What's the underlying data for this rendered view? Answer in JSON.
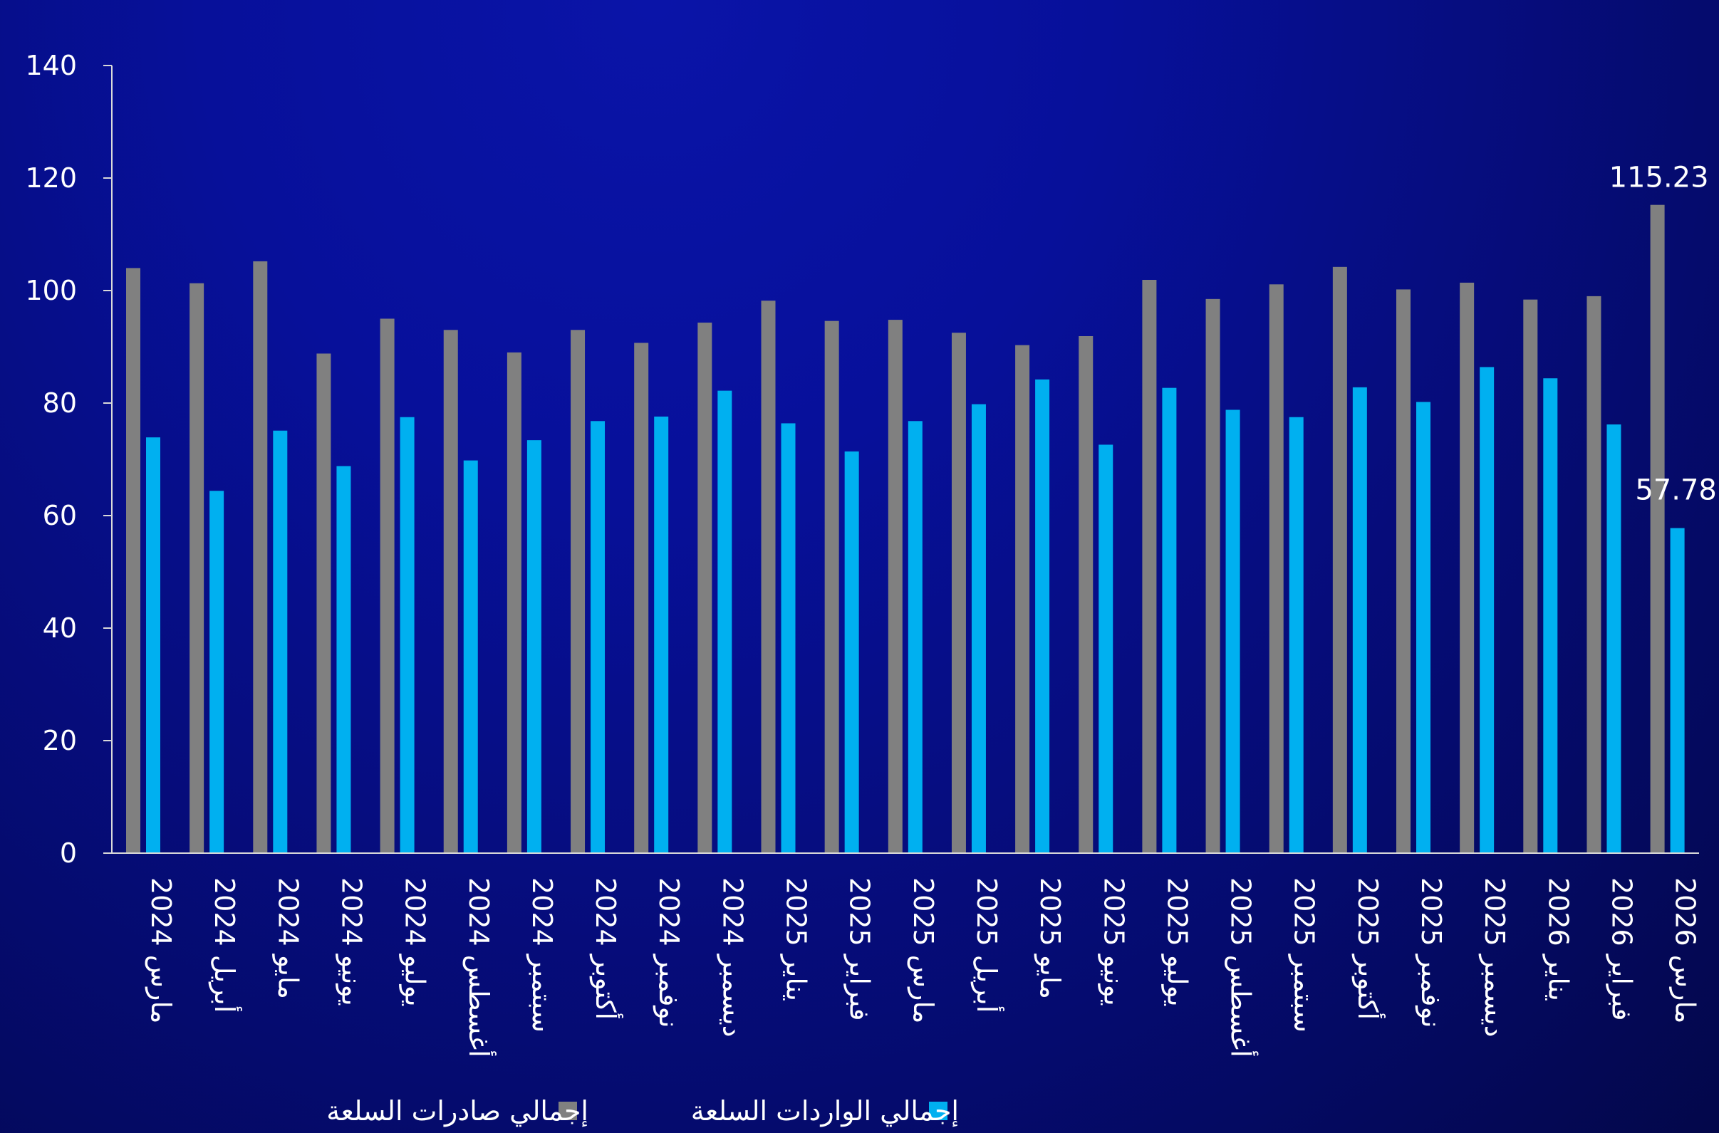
{
  "chart_data": {
    "type": "bar",
    "categories": [
      "مارس 2024",
      "أبريل 2024",
      "مايو 2024",
      "يونيو 2024",
      "يوليو 2024",
      "أغسطس 2024",
      "سبتمبر 2024",
      "أكتوبر 2024",
      "نوفمبر 2024",
      "ديسمبر 2024",
      "يناير 2025",
      "فبراير 2025",
      "مارس 2025",
      "أبريل 2025",
      "مايو 2025",
      "يونيو 2025",
      "يوليو 2025",
      "أغسطس 2025",
      "سبتمبر 2025",
      "أكتوبر 2025",
      "نوفمبر 2025",
      "ديسمبر 2025",
      "يناير 2026",
      "فبراير 2026",
      "مارس 2026"
    ],
    "series": [
      {
        "name": "إجمالي صادرات السلعة",
        "color": "#808080",
        "values": [
          104.0,
          101.3,
          105.2,
          88.8,
          95.0,
          93.0,
          89.0,
          93.0,
          90.7,
          94.3,
          98.2,
          94.6,
          94.8,
          92.5,
          90.3,
          91.9,
          101.9,
          98.5,
          101.1,
          104.2,
          100.2,
          101.4,
          98.4,
          99.0,
          115.23
        ]
      },
      {
        "name": "إجمالي الواردات السلعة",
        "color": "#00b0f0",
        "values": [
          73.9,
          64.4,
          75.1,
          68.8,
          77.5,
          69.8,
          73.4,
          76.8,
          77.6,
          82.2,
          76.4,
          71.4,
          76.8,
          79.8,
          84.2,
          72.6,
          82.7,
          78.8,
          77.5,
          82.8,
          80.2,
          86.4,
          84.4,
          76.2,
          57.78
        ]
      }
    ],
    "data_labels": [
      "115.23",
      "57.78"
    ],
    "ylim": [
      0,
      140
    ],
    "yticks": [
      "0",
      "20",
      "40",
      "60",
      "80",
      "100",
      "120",
      "140"
    ],
    "grid": false,
    "legend_position": "bottom",
    "title": "",
    "xlabel": "",
    "ylabel": ""
  }
}
